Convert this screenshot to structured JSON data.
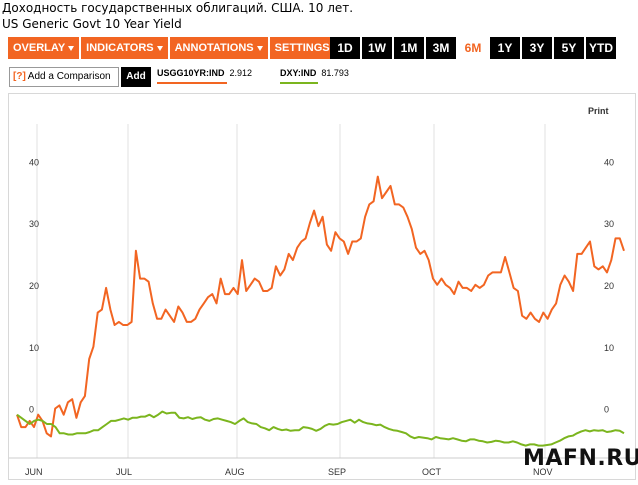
{
  "header": {
    "title_ru": "Доходность государственных облигаций. США. 10 лет.",
    "title_en": "US Generic Govt 10 Year Yield"
  },
  "toolbar": {
    "menus": [
      "OVERLAY",
      "INDICATORS",
      "ANNOTATIONS",
      "SETTINGS"
    ],
    "ranges": [
      "1D",
      "1W",
      "1M",
      "3M",
      "6M",
      "1Y",
      "3Y",
      "5Y",
      "YTD"
    ],
    "active_range": "6M"
  },
  "compare": {
    "icon": "[?]",
    "label": "Add a Comparison",
    "add_label": "Add"
  },
  "legend": [
    {
      "symbol": "USGG10YR:IND",
      "value": "2.912",
      "color": "#f26522"
    },
    {
      "symbol": "DXY:IND",
      "value": "81.793",
      "color": "#7bb51e"
    }
  ],
  "chart_data": {
    "type": "line",
    "print_label": "Print",
    "y_ticks": [
      0,
      10,
      20,
      30,
      40
    ],
    "ylim": [
      -7,
      47
    ],
    "x_labels": [
      "JUN",
      "JUL",
      "AUG",
      "SEP",
      "OCT",
      "NOV"
    ],
    "series": [
      {
        "name": "USGG10YR:IND",
        "color": "#f26522",
        "values": [
          0,
          -2,
          -2,
          -1,
          -2,
          0,
          -1,
          -3,
          -3.5,
          1,
          1.5,
          0,
          2,
          2.5,
          -0.5,
          2,
          3,
          9,
          11,
          16.5,
          17,
          20.5,
          17,
          14.5,
          15,
          14.5,
          14.5,
          15,
          26.5,
          22,
          22,
          21.5,
          18,
          15.5,
          15.5,
          17,
          16,
          15,
          17.5,
          16.5,
          15,
          15,
          15.5,
          17,
          18,
          19,
          19.5,
          18,
          22,
          19.5,
          19.5,
          20.5,
          19.5,
          25,
          20,
          21,
          22,
          21.5,
          20,
          20,
          20.5,
          24,
          22.5,
          23.5,
          26,
          25,
          27,
          28,
          28.5,
          31,
          33,
          30.5,
          32,
          27.5,
          26.5,
          29.5,
          28.5,
          28,
          26,
          28,
          28,
          28.5,
          32,
          34,
          34.5,
          38.5,
          35,
          36,
          37,
          34,
          34,
          33.5,
          32,
          30,
          27,
          26,
          26.5,
          25,
          22,
          21,
          22,
          21,
          20.5,
          19.5,
          21.5,
          20.5,
          20.5,
          20,
          21,
          20.5,
          21,
          22.5,
          23,
          23,
          23,
          25.5,
          23,
          20.5,
          20,
          16,
          15.5,
          16.5,
          15.5,
          15,
          16.5,
          15.5,
          17,
          18,
          21,
          22.5,
          21.5,
          20,
          26,
          26,
          27,
          28,
          24,
          23.5,
          24,
          23,
          25,
          28.5,
          28.5,
          26.5
        ]
      },
      {
        "name": "DXY:IND",
        "color": "#7bb51e",
        "values": [
          0,
          -0.5,
          -1,
          -1.5,
          -1,
          -0.8,
          -1,
          -1.5,
          -1.5,
          -2,
          -3,
          -3,
          -3.2,
          -3.2,
          -3,
          -3,
          -3,
          -2.8,
          -2.5,
          -2.5,
          -2,
          -1.5,
          -1,
          -1,
          -0.8,
          -0.6,
          -0.8,
          -0.5,
          -0.5,
          -0.3,
          -0.3,
          0,
          -0.4,
          0,
          0.5,
          0.2,
          0.3,
          0.3,
          -0.5,
          -0.6,
          -0.4,
          -0.7,
          -0.5,
          -0.4,
          -0.8,
          -1,
          -0.7,
          -0.6,
          -0.8,
          -1,
          -1.2,
          -1.5,
          -1,
          -0.6,
          -1.2,
          -1.4,
          -1.5,
          -2,
          -2.2,
          -2.5,
          -2,
          -2.3,
          -2.5,
          -2.4,
          -2.6,
          -2.5,
          -2.5,
          -2,
          -2.1,
          -2.3,
          -2.6,
          -2.3,
          -1.8,
          -1.5,
          -1.6,
          -1.5,
          -1.2,
          -1,
          -0.8,
          -1.3,
          -0.8,
          -1.2,
          -1.4,
          -1.5,
          -1.7,
          -1.6,
          -2,
          -2.3,
          -2.5,
          -2.6,
          -2.8,
          -3,
          -3.5,
          -3.8,
          -3.6,
          -3.7,
          -3.8,
          -4,
          -3.6,
          -3.8,
          -3.9,
          -4,
          -3.8,
          -4,
          -4.2,
          -4.3,
          -4,
          -4,
          -4.2,
          -4.3,
          -4.5,
          -4.4,
          -4.2,
          -4.3,
          -4.5,
          -4.5,
          -4.3,
          -4.5,
          -4.8,
          -5,
          -4.8,
          -4.8,
          -5,
          -5,
          -4.9,
          -4.8,
          -4.5,
          -4.2,
          -3.8,
          -3.5,
          -3.4,
          -3,
          -2.7,
          -2.5,
          -2.7,
          -2.5,
          -2.6,
          -2.5,
          -2.8,
          -2.7,
          -2.5,
          -2.6,
          -3
        ]
      }
    ]
  },
  "watermark": "MAFN.RU"
}
